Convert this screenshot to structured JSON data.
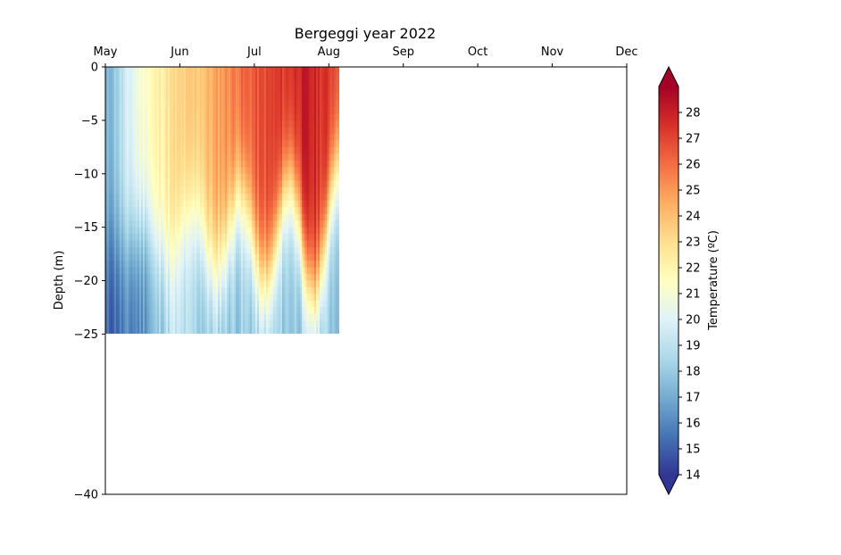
{
  "chart_data": {
    "type": "heatmap",
    "title": "Bergeggi year 2022",
    "xlabel": "",
    "ylabel": "Depth (m)",
    "x_ticks": [
      "May",
      "Jun",
      "Jul",
      "Aug",
      "Sep",
      "Oct",
      "Nov",
      "Dec"
    ],
    "x_axis_position": "top",
    "y_ticks": [
      0,
      -5,
      -10,
      -15,
      -20,
      -25,
      -40
    ],
    "y_tick_labels": [
      "0",
      "−5",
      "−10",
      "−15",
      "−20",
      "−25",
      "−40"
    ],
    "ylim": [
      -40,
      0
    ],
    "data_coverage": {
      "x_start": "May 1",
      "x_end": "Aug 4",
      "depth_min": -25,
      "depth_max": 0
    },
    "colorbar": {
      "label": "Temperature (ºC)",
      "colormap": "RdYlBu_r",
      "range": [
        14,
        29
      ],
      "extend": "both",
      "ticks": [
        14,
        15,
        16,
        17,
        18,
        19,
        20,
        21,
        22,
        23,
        24,
        25,
        26,
        27,
        28
      ]
    },
    "temperature_profiles": [
      {
        "period": "early May",
        "surface": 17,
        "bottom": 15
      },
      {
        "period": "late May",
        "surface": 21,
        "bottom": 16
      },
      {
        "period": "early June",
        "surface": 23,
        "bottom": 19
      },
      {
        "period": "mid June",
        "surface": 24,
        "bottom": 18
      },
      {
        "period": "early July",
        "surface": 26,
        "bottom": 18
      },
      {
        "period": "mid July",
        "surface": 27,
        "bottom": 18
      },
      {
        "period": "late July",
        "surface": 28,
        "bottom": 18
      },
      {
        "period": "early August",
        "surface": 27,
        "bottom": 18
      }
    ]
  }
}
